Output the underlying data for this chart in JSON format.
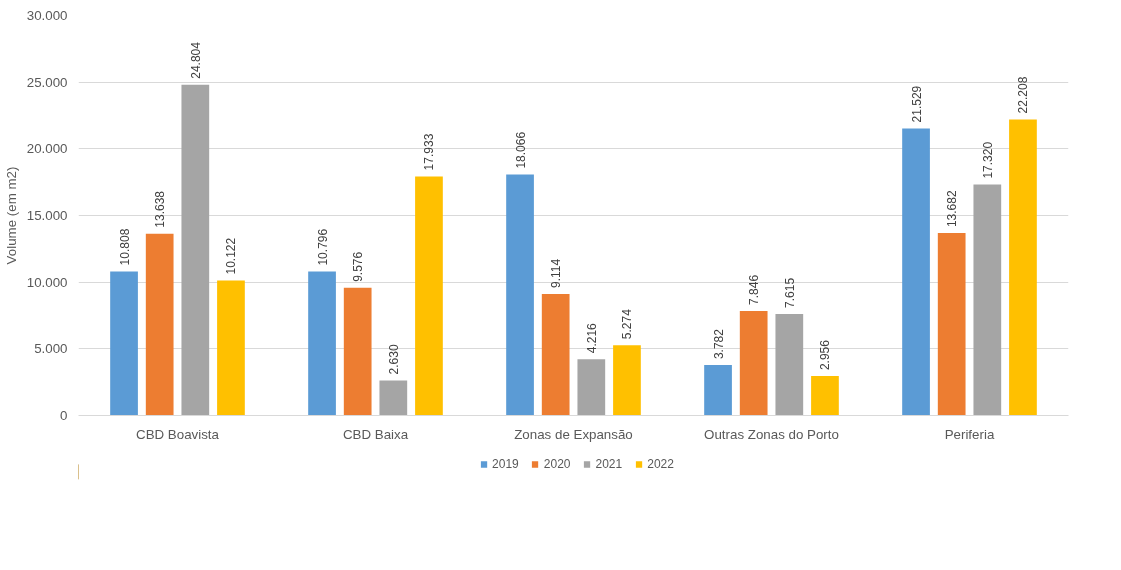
{
  "chart_data": {
    "type": "bar",
    "ylabel": "Volume (em m2)",
    "categories": [
      "CBD Boavista",
      "CBD Baixa",
      "Zonas de Expansão",
      "Outras Zonas do Porto",
      "Periferia"
    ],
    "series": [
      {
        "name": "2019",
        "color": "#5b9bd5",
        "values": [
          10808,
          10796,
          18066,
          3782,
          21529
        ],
        "value_labels": [
          "10.808",
          "10.796",
          "18.066",
          "3.782",
          "21.529"
        ]
      },
      {
        "name": "2020",
        "color": "#ed7d31",
        "values": [
          13638,
          9576,
          9114,
          7846,
          13682
        ],
        "value_labels": [
          "13.638",
          "9.576",
          "9.114",
          "7.846",
          "13.682"
        ]
      },
      {
        "name": "2021",
        "color": "#a5a5a5",
        "values": [
          24804,
          2630,
          4216,
          7615,
          17320
        ],
        "value_labels": [
          "24.804",
          "2.630",
          "4.216",
          "7.615",
          "17.320"
        ]
      },
      {
        "name": "2022",
        "color": "#ffc000",
        "values": [
          10122,
          17933,
          5274,
          2956,
          22208
        ],
        "value_labels": [
          "10.122",
          "17.933",
          "5.274",
          "2.956",
          "22.208"
        ]
      }
    ],
    "ylim": [
      0,
      30000
    ],
    "yticks": [
      {
        "value": 0,
        "label": "0"
      },
      {
        "value": 5000,
        "label": "5.000"
      },
      {
        "value": 10000,
        "label": "10.000"
      },
      {
        "value": 15000,
        "label": "15.000"
      },
      {
        "value": 20000,
        "label": "20.000"
      },
      {
        "value": 25000,
        "label": "25.000"
      },
      {
        "value": 30000,
        "label": "30.000"
      }
    ],
    "grid": "y",
    "legend": "bottom"
  }
}
